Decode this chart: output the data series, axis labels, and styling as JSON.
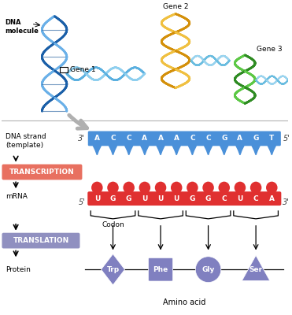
{
  "bg_color": "#ffffff",
  "dna_bases": [
    "A",
    "C",
    "C",
    "A",
    "A",
    "A",
    "C",
    "C",
    "G",
    "A",
    "G",
    "T"
  ],
  "mrna_bases": [
    "U",
    "G",
    "G",
    "U",
    "U",
    "U",
    "G",
    "G",
    "C",
    "U",
    "C",
    "A"
  ],
  "dna_color": "#4a90d9",
  "mrna_color": "#e03030",
  "transcription_color": "#e87060",
  "translation_color": "#9090c0",
  "transcription_label": "TRANSCRIPTION",
  "translation_label": "TRANSLATION",
  "dna_label": "DNA strand\n(template)",
  "mrna_label": "mRNA",
  "protein_label": "Protein",
  "codon_label": "Codon",
  "amino_acid_label": "Amino acid",
  "amino_acids": [
    "Trp",
    "Phe",
    "Gly",
    "Ser"
  ],
  "gene1_label": "Gene 1",
  "gene2_label": "Gene 2",
  "gene3_label": "Gene 3",
  "dna_molecule_label": "DNA\nmolecule"
}
